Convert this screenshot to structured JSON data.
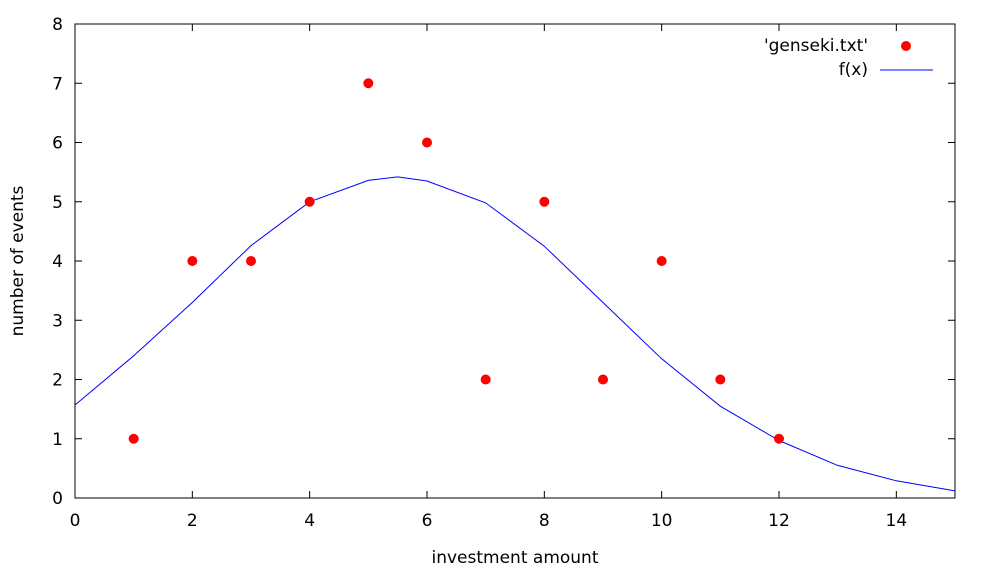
{
  "chart_data": {
    "type": "scatter",
    "xlabel": "investment amount",
    "ylabel": "number of events",
    "xlim": [
      0,
      15
    ],
    "ylim": [
      0,
      8
    ],
    "xticks": [
      0,
      2,
      4,
      6,
      8,
      10,
      12,
      14
    ],
    "yticks": [
      0,
      1,
      2,
      3,
      4,
      5,
      6,
      7,
      8
    ],
    "legend_position": "top-right",
    "series": [
      {
        "name": "'genseki.txt'",
        "kind": "points",
        "color": "#ff0000",
        "points": [
          {
            "x": 1,
            "y": 1
          },
          {
            "x": 2,
            "y": 4
          },
          {
            "x": 3,
            "y": 4
          },
          {
            "x": 4,
            "y": 5
          },
          {
            "x": 5,
            "y": 7
          },
          {
            "x": 6,
            "y": 6
          },
          {
            "x": 7,
            "y": 2
          },
          {
            "x": 8,
            "y": 5
          },
          {
            "x": 9,
            "y": 2
          },
          {
            "x": 10,
            "y": 4
          },
          {
            "x": 11,
            "y": 2
          },
          {
            "x": 12,
            "y": 1
          }
        ]
      },
      {
        "name": "f(x)",
        "kind": "line",
        "color": "#0000ff",
        "points": [
          {
            "x": 0,
            "y": 1.57
          },
          {
            "x": 1,
            "y": 2.4
          },
          {
            "x": 2,
            "y": 3.3
          },
          {
            "x": 3,
            "y": 4.26
          },
          {
            "x": 4,
            "y": 5.0
          },
          {
            "x": 5,
            "y": 5.36
          },
          {
            "x": 5.5,
            "y": 5.42
          },
          {
            "x": 6,
            "y": 5.35
          },
          {
            "x": 7,
            "y": 4.98
          },
          {
            "x": 8,
            "y": 4.25
          },
          {
            "x": 9,
            "y": 3.3
          },
          {
            "x": 10,
            "y": 2.35
          },
          {
            "x": 11,
            "y": 1.55
          },
          {
            "x": 12,
            "y": 0.97
          },
          {
            "x": 13,
            "y": 0.55
          },
          {
            "x": 14,
            "y": 0.29
          },
          {
            "x": 15,
            "y": 0.12
          }
        ]
      }
    ]
  }
}
